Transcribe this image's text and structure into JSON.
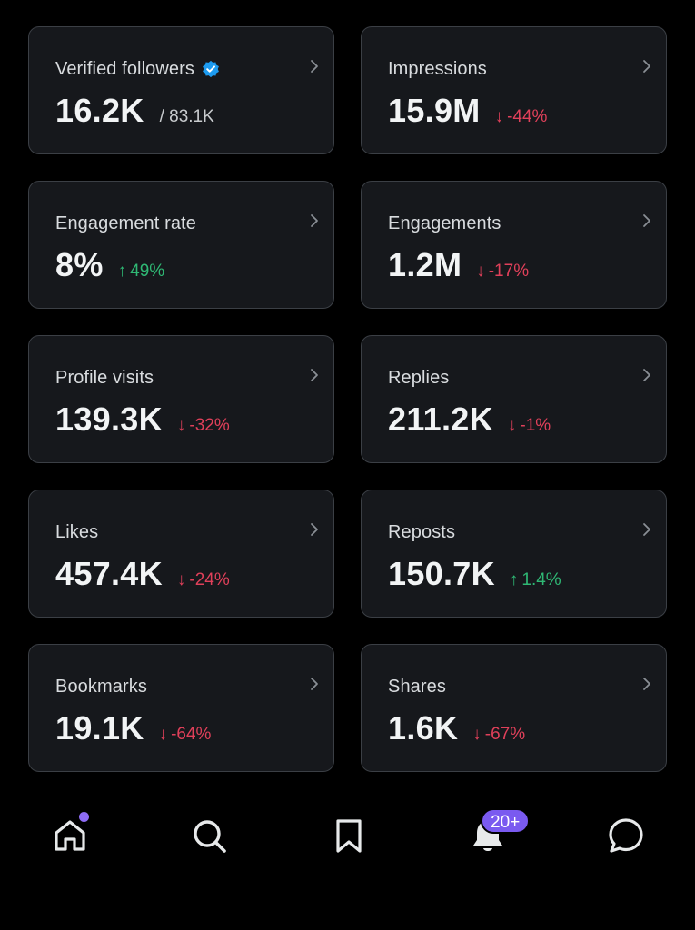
{
  "cards": [
    {
      "label": "Verified followers",
      "value": "16.2K",
      "sub": "/ 83.1K",
      "delta": "",
      "arrow": "",
      "trend": "none",
      "verified": true
    },
    {
      "label": "Impressions",
      "value": "15.9M",
      "sub": "",
      "delta": "-44%",
      "arrow": "↓",
      "trend": "down",
      "verified": false
    },
    {
      "label": "Engagement rate",
      "value": "8%",
      "sub": "",
      "delta": "49%",
      "arrow": "↑",
      "trend": "up",
      "verified": false
    },
    {
      "label": "Engagements",
      "value": "1.2M",
      "sub": "",
      "delta": "-17%",
      "arrow": "↓",
      "trend": "down",
      "verified": false
    },
    {
      "label": "Profile visits",
      "value": "139.3K",
      "sub": "",
      "delta": "-32%",
      "arrow": "↓",
      "trend": "down",
      "verified": false
    },
    {
      "label": "Replies",
      "value": "211.2K",
      "sub": "",
      "delta": "-1%",
      "arrow": "↓",
      "trend": "down",
      "verified": false
    },
    {
      "label": "Likes",
      "value": "457.4K",
      "sub": "",
      "delta": "-24%",
      "arrow": "↓",
      "trend": "down",
      "verified": false
    },
    {
      "label": "Reposts",
      "value": "150.7K",
      "sub": "",
      "delta": "1.4%",
      "arrow": "↑",
      "trend": "up",
      "verified": false
    },
    {
      "label": "Bookmarks",
      "value": "19.1K",
      "sub": "",
      "delta": "-64%",
      "arrow": "↓",
      "trend": "down",
      "verified": false
    },
    {
      "label": "Shares",
      "value": "1.6K",
      "sub": "",
      "delta": "-67%",
      "arrow": "↓",
      "trend": "down",
      "verified": false
    }
  ],
  "nav": {
    "items": [
      {
        "icon": "home-icon",
        "indicator": "dot"
      },
      {
        "icon": "search-icon"
      },
      {
        "icon": "bookmark-icon"
      },
      {
        "icon": "notifications-bell-icon",
        "badge": "20+"
      },
      {
        "icon": "messages-icon"
      }
    ]
  },
  "colors": {
    "background": "#000000",
    "card": "#16181c",
    "card_border": "#3b3f45",
    "down": "#e0405a",
    "up": "#2fb874",
    "verified": "#1d9bf0",
    "accent": "#7a5af0"
  }
}
